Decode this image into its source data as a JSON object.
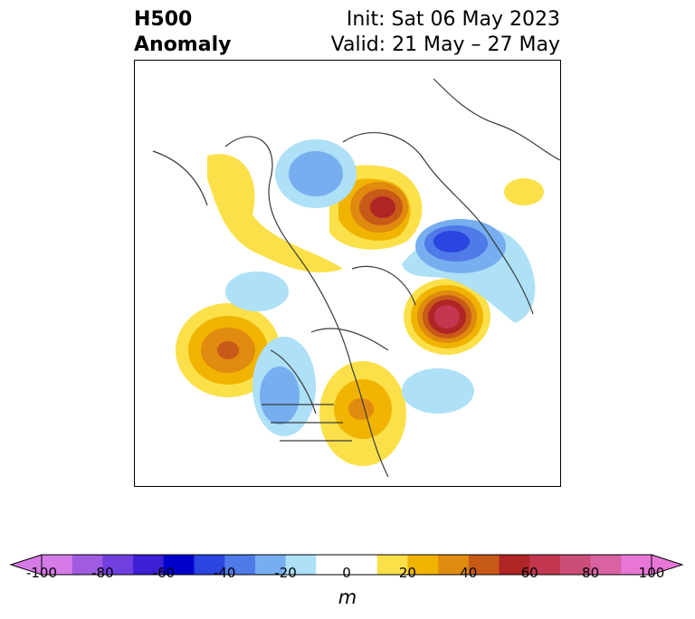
{
  "title": {
    "variable_line1": "H500",
    "variable_line2": "Anomaly",
    "init": "Init: Sat 06 May 2023",
    "valid": "Valid: 21 May – 27 May"
  },
  "colorbar": {
    "tick_labels": [
      "-100",
      "-80",
      "-60",
      "-40",
      "-20",
      "0",
      "20",
      "40",
      "60",
      "80",
      "100"
    ],
    "unit": "m",
    "colors": [
      "#d67ae8",
      "#a05be0",
      "#6f3fe0",
      "#3d1fd6",
      "#0000cc",
      "#2a45e0",
      "#4f7ae8",
      "#76aef0",
      "#aee0f8",
      "#ffffff",
      "#ffffff",
      "#fbe04a",
      "#f0b400",
      "#e08a10",
      "#c85a18",
      "#b02525",
      "#c2364f",
      "#cc4e78",
      "#d862a4",
      "#e876d6"
    ]
  },
  "anomaly_colors": {
    "pos1": "#fbe04a",
    "pos2": "#f0b400",
    "pos3": "#e08a10",
    "pos4": "#c85a18",
    "pos5": "#b02525",
    "pos6": "#c2364f",
    "neg1": "#aee0f8",
    "neg2": "#76aef0",
    "neg3": "#4f7ae8",
    "neg4": "#2a45e0"
  }
}
